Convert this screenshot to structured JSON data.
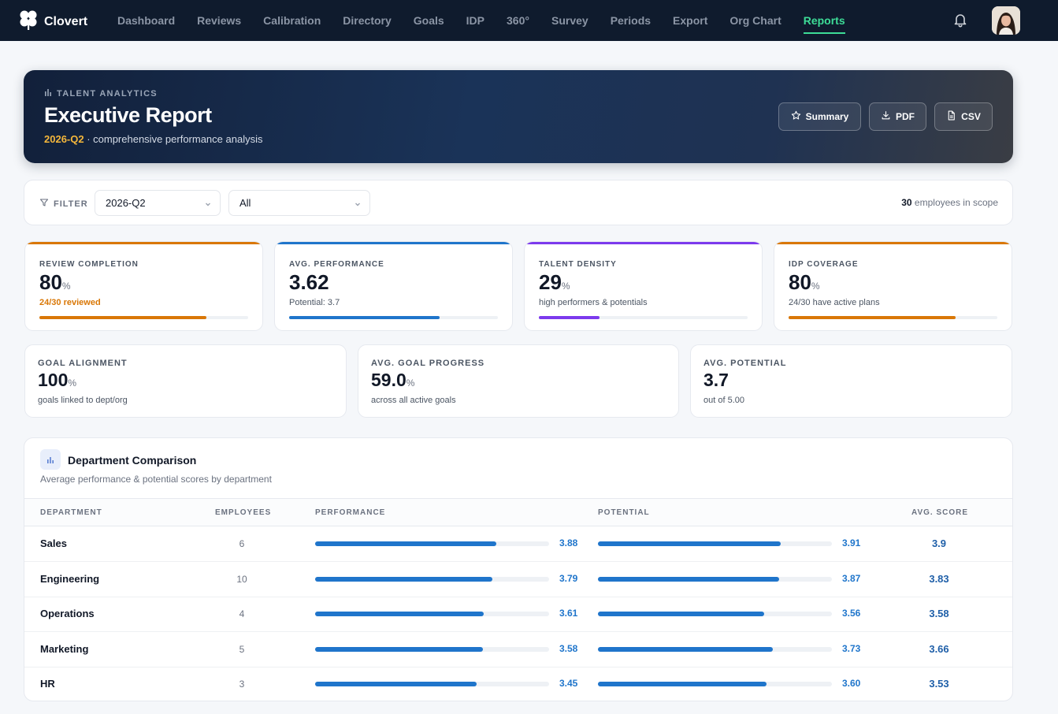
{
  "app": {
    "name": "Clovert"
  },
  "nav": {
    "items": [
      {
        "label": "Dashboard",
        "active": false
      },
      {
        "label": "Reviews",
        "active": false
      },
      {
        "label": "Calibration",
        "active": false
      },
      {
        "label": "Directory",
        "active": false
      },
      {
        "label": "Goals",
        "active": false
      },
      {
        "label": "IDP",
        "active": false
      },
      {
        "label": "360°",
        "active": false
      },
      {
        "label": "Survey",
        "active": false
      },
      {
        "label": "Periods",
        "active": false
      },
      {
        "label": "Export",
        "active": false
      },
      {
        "label": "Org Chart",
        "active": false
      },
      {
        "label": "Reports",
        "active": true
      }
    ],
    "active_color": "#3ddc97"
  },
  "hero": {
    "kicker": "TALENT ANALYTICS",
    "title": "Executive Report",
    "period": "2026-Q2",
    "subtitle": " · comprehensive performance analysis",
    "buttons": {
      "summary": "Summary",
      "pdf": "PDF",
      "csv": "CSV"
    }
  },
  "filter": {
    "label": "FILTER",
    "period_value": "2026-Q2",
    "department_value": "All",
    "scope_count": "30",
    "scope_text": " employees in scope"
  },
  "kpis": [
    {
      "label": "REVIEW COMPLETION",
      "value": "80",
      "unit": "%",
      "note": "24/30 reviewed",
      "color": "#d97706",
      "note_color": "#d97706",
      "fill": 0.8
    },
    {
      "label": "AVG. PERFORMANCE",
      "value": "3.62",
      "unit": "",
      "note": "Potential: 3.7",
      "color": "#1f75cb",
      "note_color": "#4b5563",
      "fill": 0.72
    },
    {
      "label": "TALENT DENSITY",
      "value": "29",
      "unit": "%",
      "note": "high performers & potentials",
      "color": "#7c3aed",
      "note_color": "#4b5563",
      "fill": 0.29
    },
    {
      "label": "IDP COVERAGE",
      "value": "80",
      "unit": "%",
      "note": "24/30 have active plans",
      "color": "#d97706",
      "note_color": "#4b5563",
      "fill": 0.8
    }
  ],
  "kpis2": [
    {
      "label": "GOAL ALIGNMENT",
      "value": "100",
      "unit": "%",
      "note": "goals linked to dept/org"
    },
    {
      "label": "AVG. GOAL PROGRESS",
      "value": "59.0",
      "unit": "%",
      "note": "across all active goals"
    },
    {
      "label": "AVG. POTENTIAL",
      "value": "3.7",
      "unit": "",
      "note": "out of 5.00"
    }
  ],
  "departments": {
    "title": "Department Comparison",
    "subtitle": "Average performance & potential scores by department",
    "columns": {
      "department": "DEPARTMENT",
      "employees": "EMPLOYEES",
      "performance": "PERFORMANCE",
      "potential": "POTENTIAL",
      "avg": "AVG. SCORE"
    },
    "scale_max": 5,
    "rows": [
      {
        "name": "Sales",
        "employees": "6",
        "performance": "3.88",
        "potential": "3.91",
        "avg": "3.9"
      },
      {
        "name": "Engineering",
        "employees": "10",
        "performance": "3.79",
        "potential": "3.87",
        "avg": "3.83"
      },
      {
        "name": "Operations",
        "employees": "4",
        "performance": "3.61",
        "potential": "3.56",
        "avg": "3.58"
      },
      {
        "name": "Marketing",
        "employees": "5",
        "performance": "3.58",
        "potential": "3.73",
        "avg": "3.66"
      },
      {
        "name": "HR",
        "employees": "3",
        "performance": "3.45",
        "potential": "3.60",
        "avg": "3.53"
      }
    ]
  }
}
